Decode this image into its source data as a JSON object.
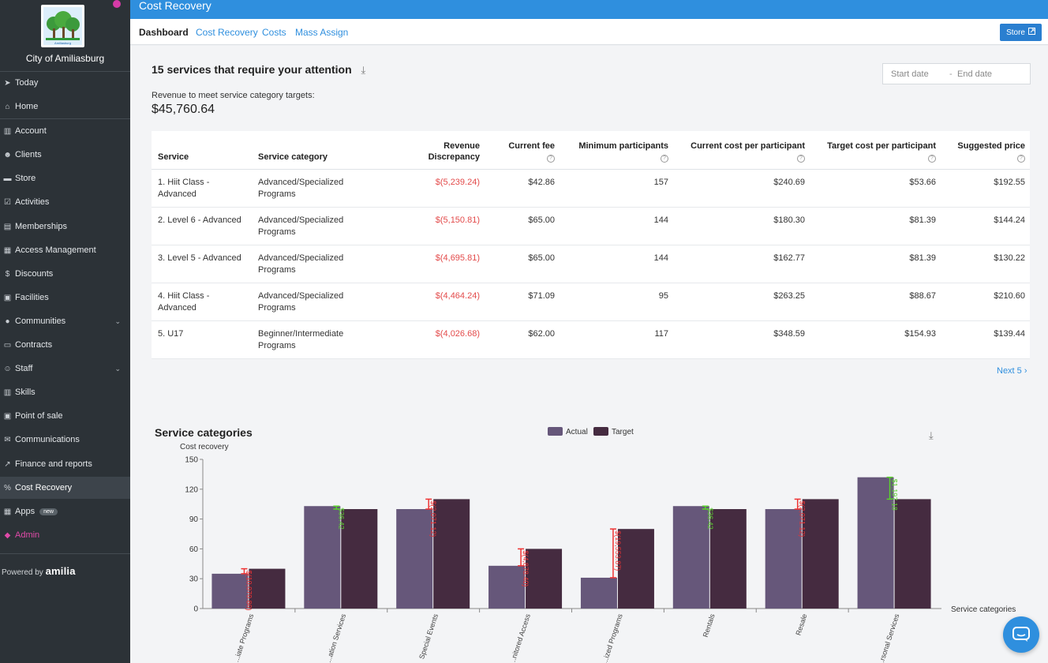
{
  "org": {
    "name": "City of Amiliasburg",
    "logo_text": "Amiliasburg"
  },
  "sidebar": {
    "items": [
      {
        "label": "Today",
        "icon": "rocket-icon",
        "glyph": "➤"
      },
      {
        "label": "Home",
        "icon": "home-icon",
        "glyph": "⌂"
      },
      {
        "label": "Account",
        "icon": "bank-icon",
        "glyph": "▥"
      },
      {
        "label": "Clients",
        "icon": "users-icon",
        "glyph": "☻"
      },
      {
        "label": "Store",
        "icon": "cart-icon",
        "glyph": "▬"
      },
      {
        "label": "Activities",
        "icon": "check-square-icon",
        "glyph": "☑"
      },
      {
        "label": "Memberships",
        "icon": "id-card-icon",
        "glyph": "▤"
      },
      {
        "label": "Access Management",
        "icon": "keyboard-icon",
        "glyph": "▦"
      },
      {
        "label": "Discounts",
        "icon": "dollar-icon",
        "glyph": "$"
      },
      {
        "label": "Facilities",
        "icon": "building-icon",
        "glyph": "▣"
      },
      {
        "label": "Communities",
        "icon": "map-pin-icon",
        "glyph": "●"
      },
      {
        "label": "Contracts",
        "icon": "contract-icon",
        "glyph": "▭"
      },
      {
        "label": "Staff",
        "icon": "staff-icon",
        "glyph": "☺"
      },
      {
        "label": "Skills",
        "icon": "skills-icon",
        "glyph": "▥"
      },
      {
        "label": "Point of sale",
        "icon": "pos-icon",
        "glyph": "▣"
      },
      {
        "label": "Communications",
        "icon": "envelope-icon",
        "glyph": "✉"
      },
      {
        "label": "Finance and reports",
        "icon": "chart-line-icon",
        "glyph": "↗"
      },
      {
        "label": "Cost Recovery",
        "icon": "percent-icon",
        "glyph": "%"
      },
      {
        "label": "Apps",
        "icon": "grid-icon",
        "glyph": "▦",
        "badge": "new"
      },
      {
        "label": "Admin",
        "icon": "shield-icon",
        "glyph": "◆"
      }
    ],
    "powered_prefix": "Powered by",
    "powered_brand": "amilia"
  },
  "header": {
    "title": "Cost Recovery"
  },
  "tabs": [
    "Dashboard",
    "Cost Recovery",
    "Costs",
    "Mass Assign"
  ],
  "store_button": "Store",
  "attention": {
    "title": "15 services that require your attention",
    "start_placeholder": "Start date",
    "end_placeholder": "End date",
    "revenue_label": "Revenue to meet service category targets:",
    "revenue_value": "$45,760.64"
  },
  "table": {
    "headers": [
      "Service",
      "Service category",
      "Revenue Discrepancy",
      "Current fee",
      "Minimum participants",
      "Current cost per participant",
      "Target cost per participant",
      "Suggested price"
    ],
    "rows": [
      [
        "1. Hiit Class - Advanced",
        "Advanced/Specialized Programs",
        "$(5,239.24)",
        "$42.86",
        "157",
        "$240.69",
        "$53.66",
        "$192.55"
      ],
      [
        "2. Level 6 - Advanced",
        "Advanced/Specialized Programs",
        "$(5,150.81)",
        "$65.00",
        "144",
        "$180.30",
        "$81.39",
        "$144.24"
      ],
      [
        "3. Level 5 - Advanced",
        "Advanced/Specialized Programs",
        "$(4,695.81)",
        "$65.00",
        "144",
        "$162.77",
        "$81.39",
        "$130.22"
      ],
      [
        "4. Hiit Class - Advanced",
        "Advanced/Specialized Programs",
        "$(4,464.24)",
        "$71.09",
        "95",
        "$263.25",
        "$88.67",
        "$210.60"
      ],
      [
        "5. U17",
        "Beginner/Intermediate Programs",
        "$(4,026.68)",
        "$62.00",
        "117",
        "$348.59",
        "$154.93",
        "$139.44"
      ]
    ],
    "next_label": "Next 5 ›"
  },
  "chart_data": {
    "type": "bar",
    "title": "Service categories",
    "ylabel": "Cost recovery",
    "xlabel": "Service categories",
    "ylim": [
      0,
      150
    ],
    "yticks": [
      0,
      30,
      60,
      90,
      120,
      150
    ],
    "categories": [
      "...iate Programs",
      "...ation Services",
      "Special Events",
      "...nitored Access",
      "...ized Programs",
      "Rentals",
      "Resale",
      "...rsonal Services"
    ],
    "series": [
      {
        "name": "Actual",
        "color": "#66577a",
        "values": [
          35,
          103,
          100,
          43,
          31,
          103,
          100,
          132
        ]
      },
      {
        "name": "Target",
        "color": "#452b40",
        "values": [
          40,
          100,
          110,
          60,
          80,
          100,
          110,
          110
        ]
      }
    ],
    "annotations": [
      "$(10,070.80)",
      "$36.42",
      "$(2,071.12)",
      "$(4,878.40)",
      "$(19,553.87)",
      "$36.42",
      "$(2,071.12)",
      "$1,197.18"
    ],
    "annotation_colors": [
      "#e33",
      "#5bd12e",
      "#e33",
      "#e33",
      "#e33",
      "#5bd12e",
      "#e33",
      "#5bd12e"
    ],
    "legend_position": "top-center"
  }
}
